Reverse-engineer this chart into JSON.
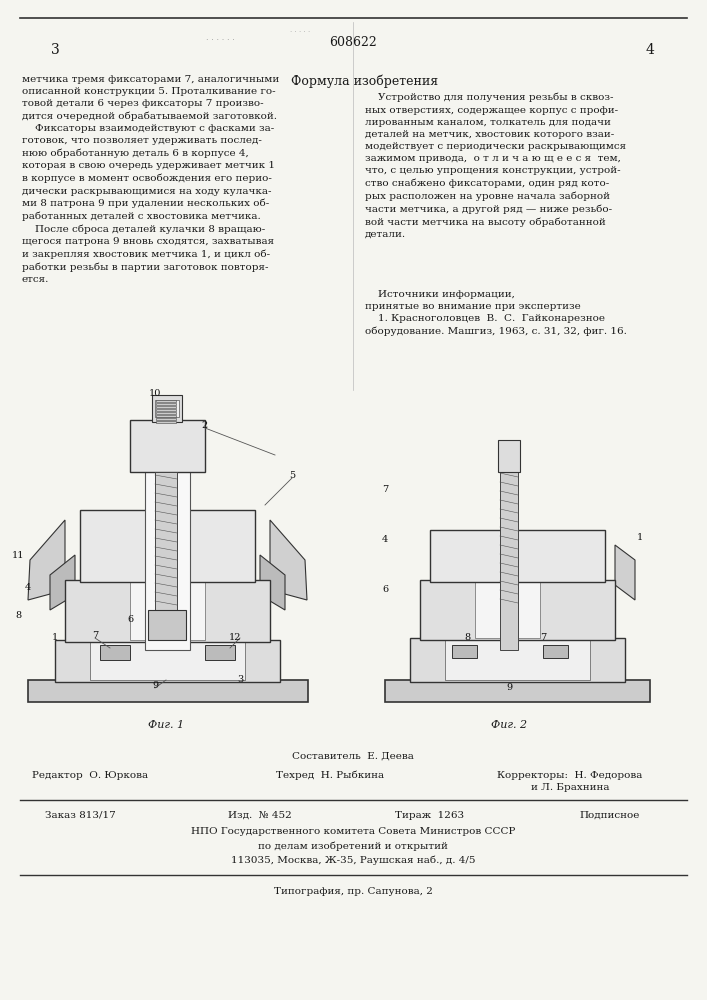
{
  "bg_color": "#f5f5f0",
  "text_color": "#1a1a1a",
  "page_number_left": "3",
  "page_number_right": "4",
  "patent_number": "608622",
  "title_formula": "Формула изобретения",
  "left_text": "метчика тремя фиксаторами 7, аналогичными\nописанной конструкции 5. Проталкивание го-\nтовой детали 6 через фиксаторы 7 произво-\nдится очередной обрабатываемой заготовкой.\n    Фиксаторы взаимодействуют с фасками за-\nготовок, что позволяет удерживать послед-\nнюю обработанную деталь 6 в корпусе 4,\nкоторая в свою очередь удерживает метчик 1\nв корпусе в момент освобождения его перио-\nдически раскрывающимися на ходу кулачка-\nми 8 патрона 9 при удалении нескольких об-\nработанных деталей с хвостовика метчика.\n    После сброса деталей кулачки 8 вращаю-\nщегося патрона 9 вновь сходятся, захватывая\nи закрепляя хвостовик метчика 1, и цикл об-\nработки резьбы в партии заготовок повторя-\nется.",
  "right_text": "    Устройство для получения резьбы в сквоз-\nных отверстиях, содержащее корпус с профи-\nлированным каналом, толкатель для подачи\nдеталей на метчик, хвостовик которого взаи-\nмодействует с периодически раскрывающимся\nзажимом привода,  о т л и ч а ю щ е е с я  тем,\nчто, с целью упрощения конструкции, устрой-\nство снабжено фиксаторами, один ряд кото-\nрых расположен на уровне начала заборной\nчасти метчика, а другой ряд — ниже резьбо-\nвой части метчика на высоту обработанной\ndetali.\n\n    Источники информации,\nпринятые во внимание при экспертизе\n    1. Красноголовцев  В.  С.  Гайконарезное\nоборудование. Машгиз, 1963, с. 31, 32, фиг. 16.",
  "right_text_corrected": "    Устройство для получения резьбы в сквоз-\nных отверстиях, содержащее корпус с профи-\nлированным каналом, толкатель для подачи\nдеталей на метчик, хвостовик которого взаи-\nмодействует с периодически раскрывающимся\nзажимом привода,  о т л и ч а ю щ е е с я  тем,\nчто, с целью упрощения конструкции, устрой-\nство снабжено фиксаторами, один ряд кото-\nрых расположен на уровне начала заборной\nчасти метчика, а другой ряд — ниже резьбо-\nвой части метчика на высоту обработанной\nдетали.",
  "sources_title": "    Источники информации,",
  "sources_subtitle": "принятые во внимание при экспертизе",
  "sources_ref": "    1. Красноголовцев  В.  С.  Гайконарезное\nоборудование. Машгиз, 1963, с. 31, 32, фиг. 16.",
  "fig1_caption": "Фиг. 1",
  "fig2_caption": "Фиг. 2",
  "footer_compiler_label": "Составитель",
  "footer_compiler": "Е. Деева",
  "footer_editor_label": "Редактор",
  "footer_editor": "О. Юркова",
  "footer_techred_label": "Техред",
  "footer_techred": "Н. Рыбкина",
  "footer_correctors_label": "Корректоры:",
  "footer_correctors": "Н. Федорова\nи Л. Брахнина",
  "footer_order": "Заказ 813/17",
  "footer_edition": "Изд.  № 452",
  "footer_copies": "Тираж  1263",
  "footer_subscription": "Подписное",
  "footer_org": "НПО Государственного комитета Совета Министров СССР",
  "footer_org2": "по делам изобретений и открытий",
  "footer_address": "113035, Москва, Ж-35, Раушская наб., д. 4/5",
  "footer_printer": "Типография, пр. Сапунова, 2",
  "line_color": "#333333"
}
